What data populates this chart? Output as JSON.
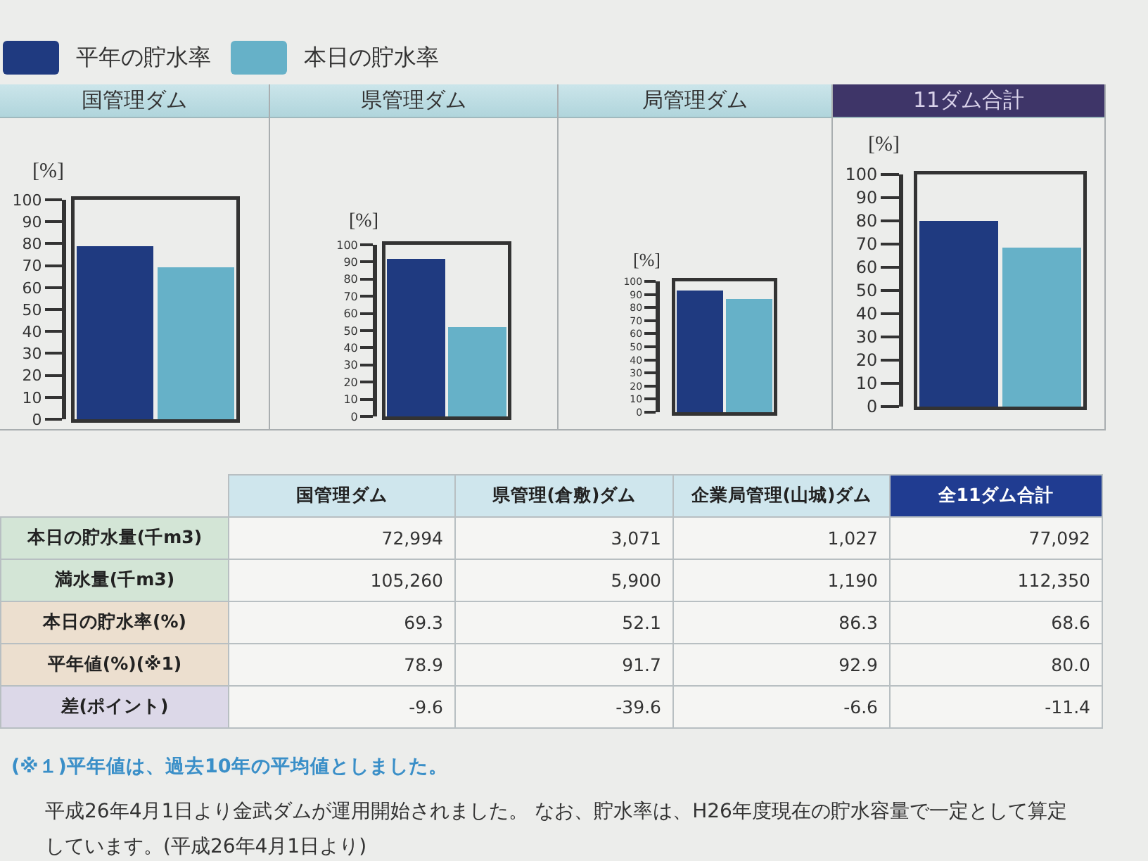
{
  "chart_data": [
    {
      "type": "bar",
      "title": "国管理ダム",
      "ylabel": "[%]",
      "categories": [
        null,
        null
      ],
      "series": [
        {
          "name": "平年の貯水率",
          "color": "#1f3a80",
          "values": [
            78.9,
            null
          ]
        },
        {
          "name": "本日の貯水率",
          "color": "#66b1c8",
          "values": [
            null,
            69.3
          ]
        }
      ],
      "stacked": true,
      "ylim": [
        0,
        100
      ],
      "yticks": [
        0,
        10,
        20,
        30,
        40,
        50,
        60,
        70,
        80,
        90,
        100
      ],
      "legend": "top right"
    },
    {
      "type": "bar",
      "title": "県管理ダム",
      "ylabel": "[%]",
      "categories": [
        null,
        null
      ],
      "series": [
        {
          "color": "#1f3a80",
          "values": [
            91.7,
            null
          ]
        },
        {
          "color": "#66b1c8",
          "values": [
            null,
            52.1
          ]
        }
      ],
      "stacked": true,
      "ylim": [
        0,
        100
      ],
      "yticks": [
        0,
        10,
        20,
        30,
        40,
        50,
        60,
        70,
        80,
        90,
        100
      ]
    },
    {
      "type": "bar",
      "title": "局管理ダム",
      "ylabel": "[%]",
      "categories": [
        null,
        null
      ],
      "series": [
        {
          "color": "#1f3a80",
          "values": [
            92.9,
            null
          ]
        },
        {
          "color": "#66b1c8",
          "values": [
            null,
            86.3
          ]
        }
      ],
      "stacked": true,
      "ylim": [
        0,
        100
      ],
      "yticks": [
        0,
        10,
        20,
        30,
        40,
        50,
        60,
        70,
        80,
        90,
        100
      ]
    },
    {
      "type": "bar",
      "title": "11ダム合計",
      "ylabel": "[%]",
      "categories": [
        null,
        null
      ],
      "series": [
        {
          "color": "#1f3a80",
          "values": [
            80.0,
            null
          ]
        },
        {
          "color": "#66b1c8",
          "values": [
            null,
            68.6
          ]
        }
      ],
      "stacked": true,
      "ylim": [
        0,
        100
      ],
      "yticks": [
        0,
        10,
        20,
        30,
        40,
        50,
        60,
        70,
        80,
        90,
        100
      ]
    },
    {
      "type": "other",
      "categories": [
        "国管理ダム",
        "県管理(倉敷)ダム",
        "企業局管理(山城)ダム",
        "全11ダム合計"
      ],
      "y_categories": [
        "本日の貯水量(千m3)",
        "満水量(千m3)",
        "本日の貯水率(%)",
        "平年値(%)(※1)",
        "差(ポイント)"
      ],
      "cell_labels": [
        [
          "72,994",
          "3,071",
          "1,027",
          "77,092"
        ],
        [
          "105,260",
          "5,900",
          "1,190",
          "112,350"
        ],
        [
          "69.3",
          "52.1",
          "86.3",
          "68.6"
        ],
        [
          "78.9",
          "91.7",
          "92.9",
          "80.0"
        ],
        [
          "-9.6",
          "-39.6",
          "-6.6",
          "-11.4"
        ]
      ],
      "annotations": [
        "(※１)平年値は、過去10年の平均値としました。",
        "平成26年4月1日より金武ダムが運用開始されました。 なお、貯水率は、H26年度現在の貯水容量で一定として算定しています。(平成26年4月1日より)"
      ]
    }
  ]
}
